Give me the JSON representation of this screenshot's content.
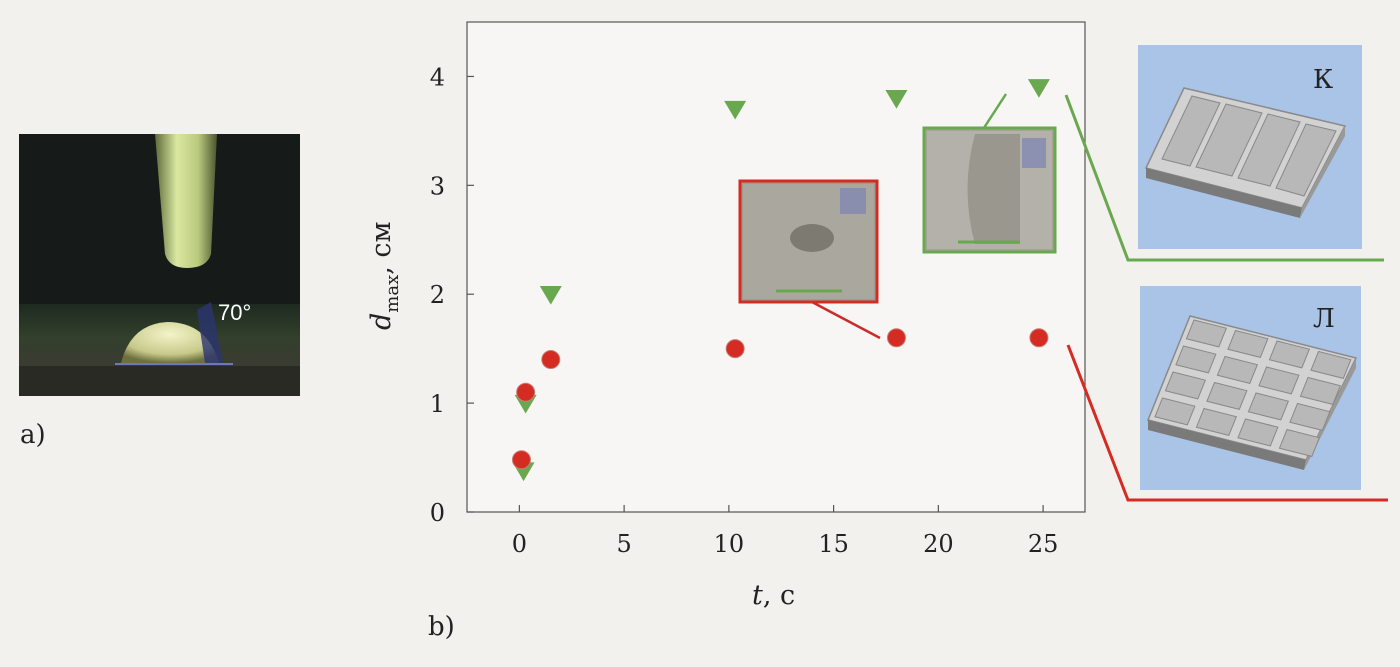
{
  "panels": {
    "a_label": "a)",
    "b_label": "b)"
  },
  "photo": {
    "angle_label": "70°"
  },
  "models": [
    {
      "label": "К",
      "color": "#6aa84f"
    },
    {
      "label": "Л",
      "color": "#cc2b2b"
    }
  ],
  "colors": {
    "series_k": "#6aa84f",
    "series_l": "#d42c22",
    "model_background": "#a9c4e6",
    "plot_border": "#555555"
  },
  "chart_data": {
    "type": "scatter",
    "xlim": [
      -2.5,
      27
    ],
    "ylim": [
      0,
      4.5
    ],
    "xticks": [
      0,
      5,
      10,
      15,
      20,
      25
    ],
    "yticks": [
      0,
      1,
      2,
      3,
      4
    ],
    "xlabel_var": "t",
    "xlabel_unit": ", c",
    "ylabel_var": "d",
    "ylabel_sub": "max",
    "ylabel_unit": ", см",
    "series": [
      {
        "name": "К",
        "marker": "triangle-down",
        "color": "#6aa84f",
        "points": [
          [
            0.2,
            0.38
          ],
          [
            0.3,
            1.0
          ],
          [
            1.5,
            2.0
          ],
          [
            10.3,
            3.7
          ],
          [
            18,
            3.8
          ],
          [
            24.8,
            3.9
          ]
        ]
      },
      {
        "name": "Л",
        "marker": "circle",
        "color": "#d42c22",
        "points": [
          [
            0.1,
            0.48
          ],
          [
            0.3,
            1.1
          ],
          [
            1.5,
            1.4
          ],
          [
            10.3,
            1.5
          ],
          [
            18,
            1.6
          ],
          [
            24.8,
            1.6
          ]
        ]
      }
    ],
    "grid": false
  }
}
